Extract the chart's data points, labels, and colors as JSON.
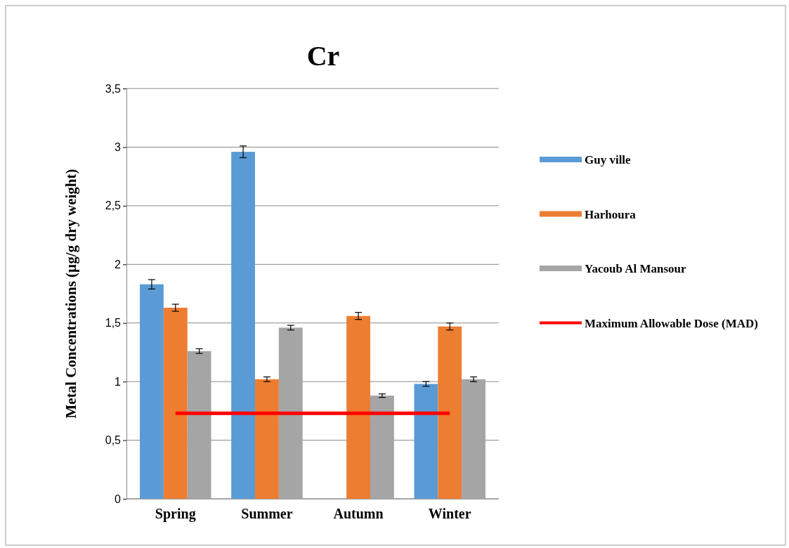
{
  "chart_data": {
    "type": "bar",
    "title": "Cr",
    "ylabel": "Metal Concentrations (µg/g dry weight)",
    "categories": [
      "Spring",
      "Summer",
      "Autumn",
      "Winter"
    ],
    "series": [
      {
        "name": "Guy ville",
        "color": "#5b9bd5",
        "values": [
          1.83,
          2.96,
          null,
          0.98
        ],
        "errors": [
          0.04,
          0.05,
          null,
          0.02
        ]
      },
      {
        "name": "Harhoura",
        "color": "#ed7d31",
        "values": [
          1.63,
          1.02,
          1.56,
          1.47
        ],
        "errors": [
          0.03,
          0.02,
          0.03,
          0.03
        ]
      },
      {
        "name": "Yacoub Al Mansour",
        "color": "#a5a5a5",
        "values": [
          1.26,
          1.46,
          0.88,
          1.02
        ],
        "errors": [
          0.02,
          0.02,
          0.015,
          0.02
        ]
      },
      {
        "name": "Maximum Allowable Dose (MAD)",
        "type": "line",
        "color": "#ff0000",
        "values": [
          0.73,
          0.73,
          0.73,
          0.73
        ],
        "marker": "none"
      }
    ],
    "ylim": [
      0,
      3.5
    ],
    "yticks": [
      0,
      {
        "value": 0.5,
        "label": "0,5"
      },
      1,
      {
        "value": 1.5,
        "label": "1,5"
      },
      2,
      {
        "value": 2.5,
        "label": "2,5"
      },
      3,
      {
        "value": 3.5,
        "label": "3,5"
      }
    ],
    "grid": "y",
    "legend": "right"
  }
}
